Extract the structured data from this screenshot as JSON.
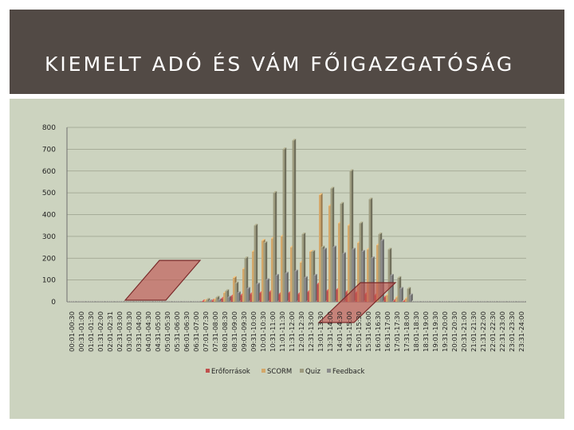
{
  "header": {
    "title": "KIEMELT ADÓ ÉS VÁM FŐIGAZGATÓSÁG"
  },
  "colors": {
    "header_bg": "#524a45",
    "panel_bg": "#ccd3bf",
    "highlight_fill": "#c0504d",
    "highlight_stroke": "#7a2a2a"
  },
  "chart_data": {
    "type": "bar",
    "title": "",
    "xlabel": "",
    "ylabel": "",
    "ylim": [
      0,
      800
    ],
    "yticks": [
      0,
      100,
      200,
      300,
      400,
      500,
      600,
      700,
      800
    ],
    "grid": true,
    "legend_position": "bottom",
    "categories": [
      "00:01-00:30",
      "00:31-01:00",
      "01:01-01:30",
      "01:31-02:00",
      "02:01-02:31",
      "02:31-03:00",
      "03:01-03:30",
      "03:31-04:00",
      "04:01-04:30",
      "04:31-05:00",
      "05:01-05:30",
      "05:31-06:00",
      "06:01-06:30",
      "06:31-07:00",
      "07:01-07:30",
      "07:31-08:00",
      "08:01-08:30",
      "08:31-09:00",
      "09:01-09:30",
      "09:31-10:00",
      "10:01-10:30",
      "10:31-11:00",
      "11:01-11:30",
      "11:31-12:00",
      "12:01-12:30",
      "12:31-13:00",
      "13:01-13:30",
      "13:31-14:00",
      "14:01-14:30",
      "14:31-15:00",
      "15:01-15:30",
      "15:31-16:00",
      "16:01-16:30",
      "16:31-17:00",
      "17:01-17:30",
      "17:31-18:00",
      "18:01-18:30",
      "18:31-19:00",
      "19:01-19:30",
      "19:31-20:00",
      "20:01-20:30",
      "20:31-21:00",
      "21:01-21:30",
      "21:31-22:00",
      "22:01-22:30",
      "22:31-23:00",
      "23:01-23:30",
      "23:31-24:00"
    ],
    "series": [
      {
        "name": "Erőforrások",
        "color": "#c0504d",
        "values": [
          0,
          0,
          0,
          0,
          0,
          0,
          0,
          0,
          0,
          0,
          0,
          0,
          0,
          0,
          2,
          5,
          15,
          25,
          30,
          35,
          40,
          45,
          35,
          40,
          35,
          45,
          80,
          50,
          55,
          45,
          40,
          35,
          30,
          20,
          5,
          2,
          0,
          0,
          0,
          0,
          0,
          0,
          0,
          0,
          0,
          0,
          0,
          0
        ]
      },
      {
        "name": "SCORM",
        "color": "#d4a86a",
        "values": [
          0,
          0,
          0,
          0,
          0,
          0,
          0,
          0,
          0,
          0,
          0,
          0,
          0,
          0,
          5,
          10,
          40,
          110,
          150,
          230,
          280,
          290,
          300,
          250,
          180,
          230,
          490,
          440,
          360,
          350,
          270,
          240,
          260,
          30,
          20,
          15,
          0,
          0,
          0,
          0,
          0,
          0,
          0,
          0,
          0,
          0,
          0,
          0
        ]
      },
      {
        "name": "Quiz",
        "color": "#9c9a7e",
        "values": [
          0,
          0,
          0,
          0,
          0,
          0,
          0,
          0,
          0,
          0,
          0,
          0,
          0,
          0,
          10,
          20,
          50,
          85,
          200,
          350,
          270,
          500,
          700,
          740,
          310,
          230,
          250,
          520,
          450,
          600,
          360,
          470,
          310,
          240,
          110,
          60,
          0,
          0,
          0,
          0,
          0,
          0,
          0,
          0,
          0,
          0,
          0,
          0
        ]
      },
      {
        "name": "Feedback",
        "color": "#8c8c8c",
        "values": [
          0,
          0,
          0,
          0,
          0,
          0,
          0,
          0,
          0,
          0,
          0,
          0,
          0,
          0,
          3,
          8,
          20,
          40,
          60,
          80,
          100,
          120,
          130,
          140,
          110,
          120,
          240,
          250,
          220,
          240,
          230,
          200,
          280,
          120,
          60,
          30,
          0,
          0,
          0,
          0,
          0,
          0,
          0,
          0,
          0,
          0,
          0,
          0
        ]
      }
    ]
  }
}
